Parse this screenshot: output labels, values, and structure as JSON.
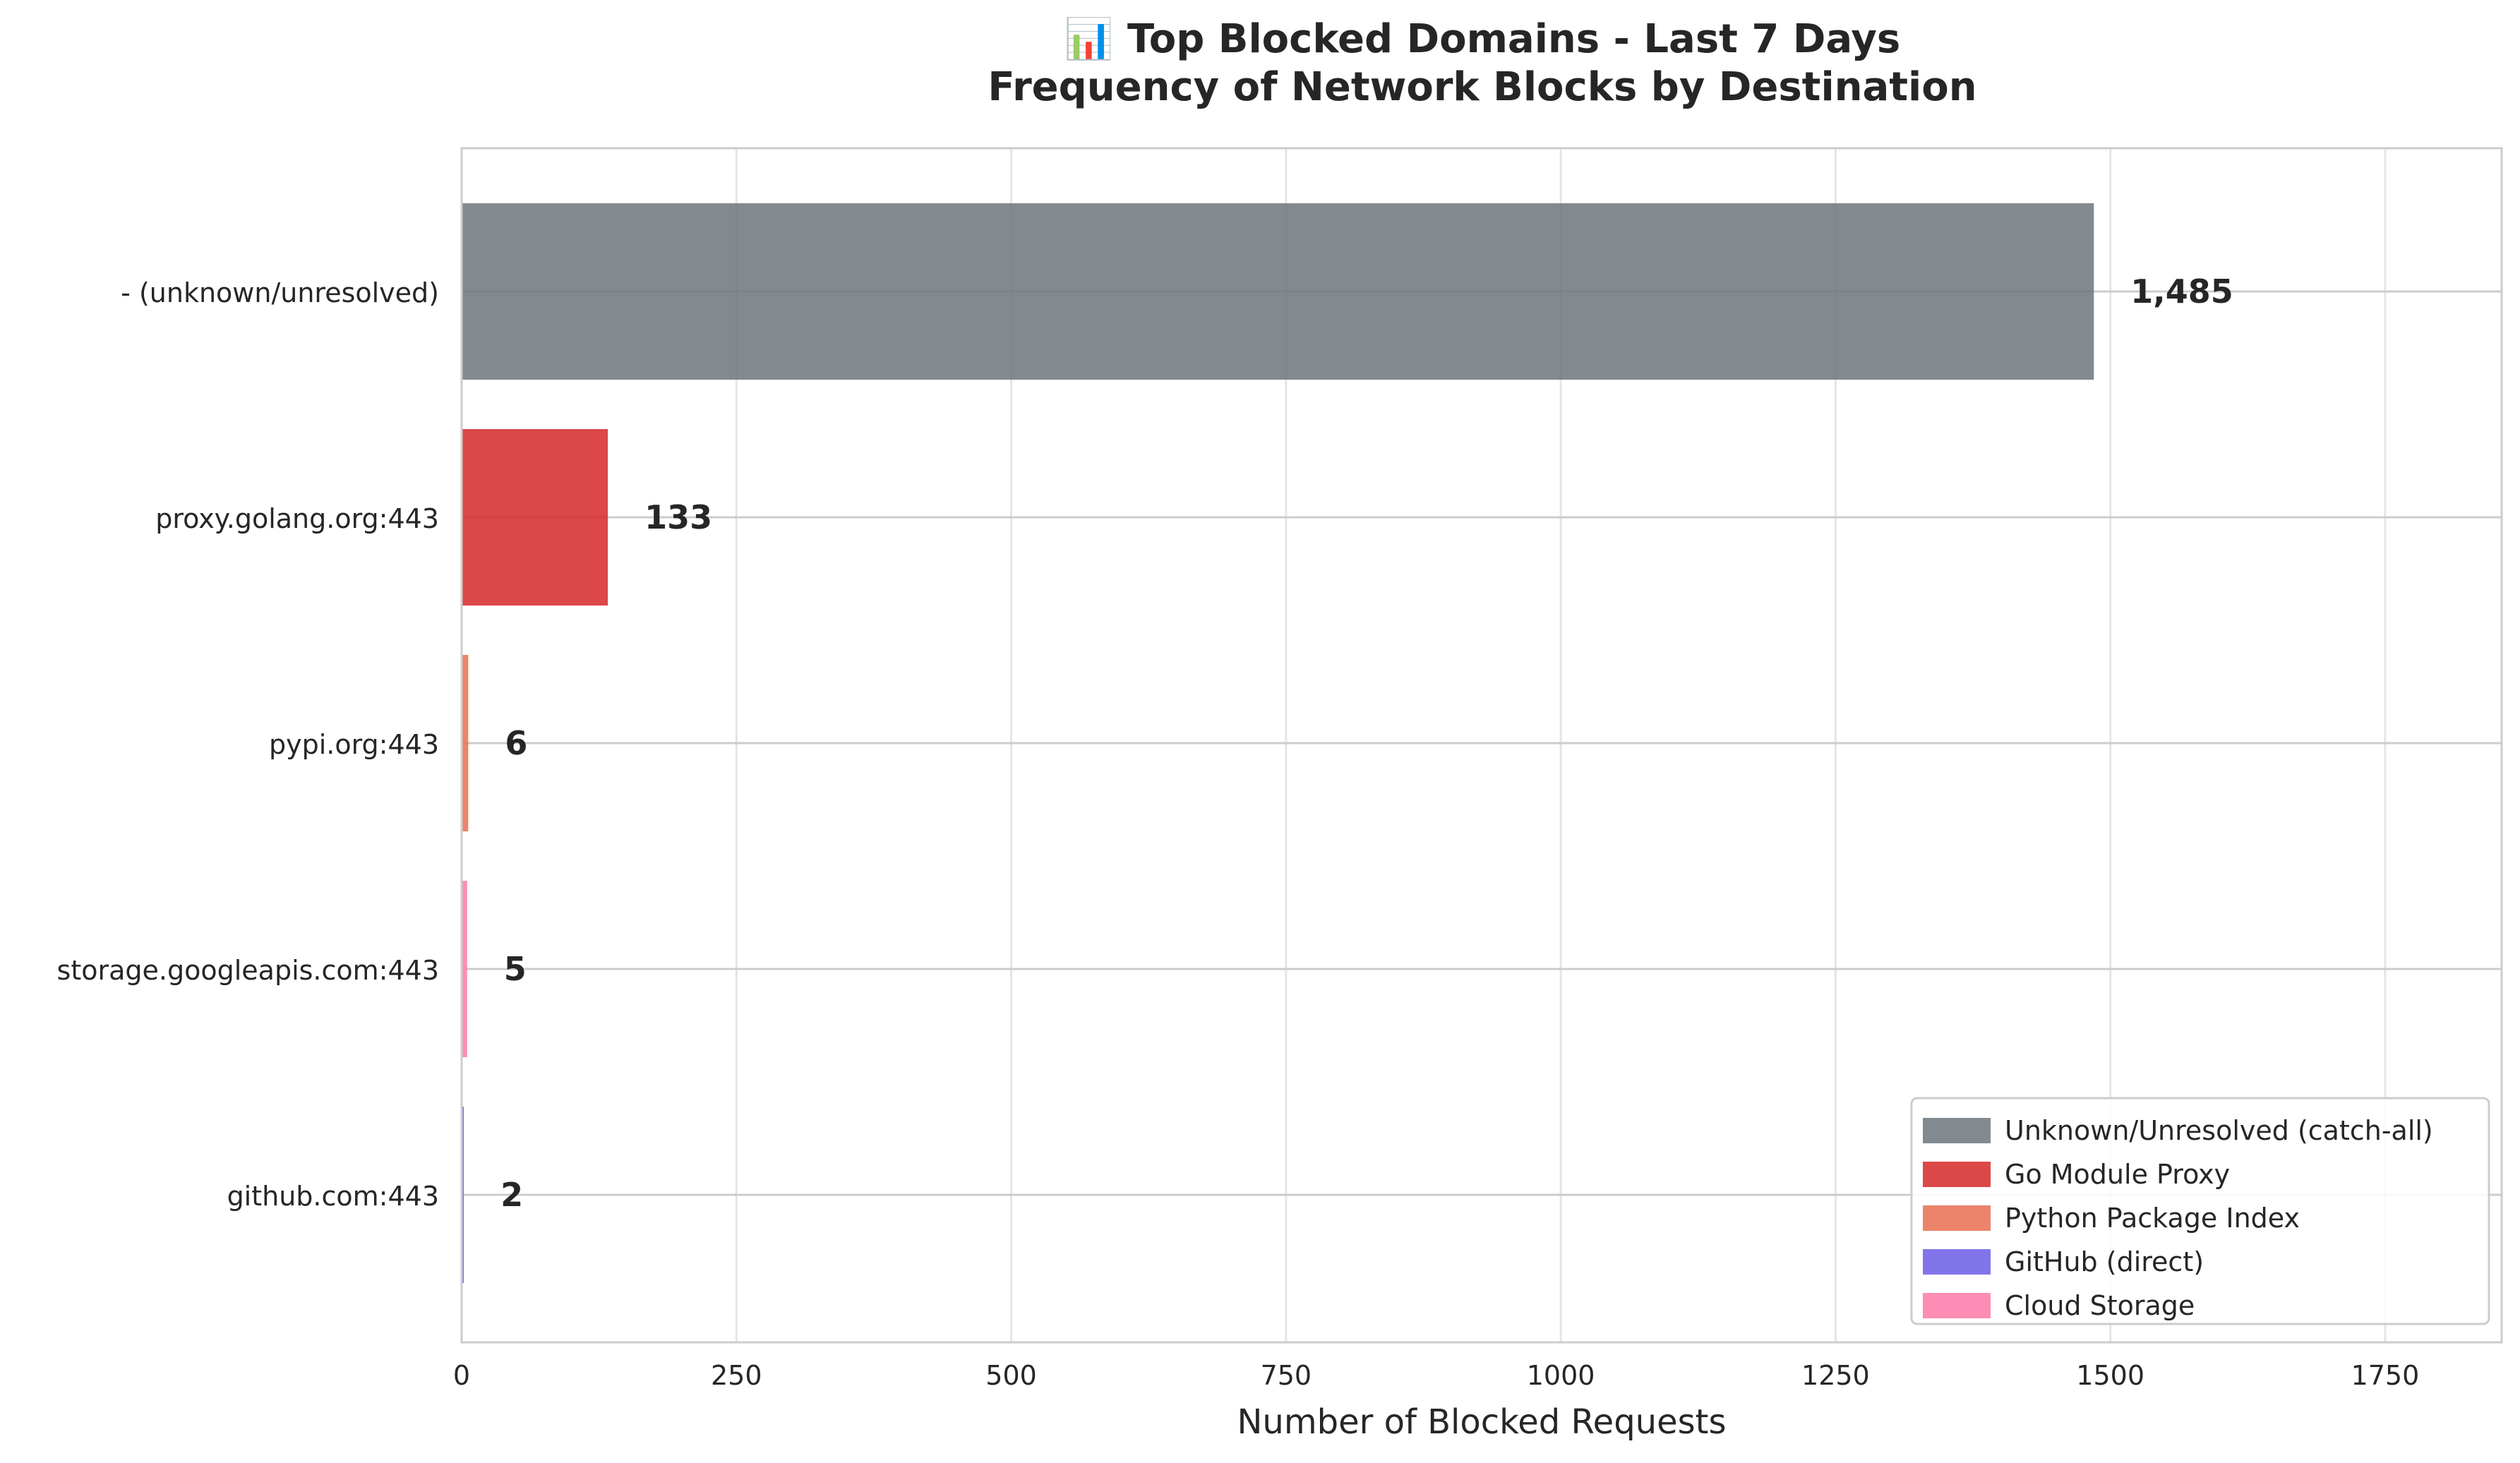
{
  "chart_data": {
    "type": "bar",
    "orientation": "horizontal",
    "title": "📊 Top Blocked Domains - Last 7 Days",
    "subtitle": "Frequency of Network Blocks by Destination",
    "xlabel": "Number of Blocked Requests",
    "ylabel": "",
    "xlim": [
      0,
      1856
    ],
    "xticks": [
      0,
      250,
      500,
      750,
      1000,
      1250,
      1500,
      1750
    ],
    "grid": true,
    "legend_position": "bottom-right",
    "categories": [
      "- (unknown/unresolved)",
      "proxy.golang.org:443",
      "pypi.org:443",
      "storage.googleapis.com:443",
      "github.com:443"
    ],
    "values": [
      1485,
      133,
      6,
      5,
      2
    ],
    "value_labels": [
      "1,485",
      "133",
      "6",
      "5",
      "2"
    ],
    "bar_colors": [
      "#6c757d",
      "#d62728",
      "#e76f51",
      "#6c5ce7",
      "#fd79a8"
    ],
    "bar_groups": [
      0,
      1,
      2,
      4,
      3
    ],
    "legend": [
      {
        "label": "Unknown/Unresolved (catch-all)",
        "color": "#6c757d"
      },
      {
        "label": "Go Module Proxy",
        "color": "#d62728"
      },
      {
        "label": "Python Package Index",
        "color": "#e76f51"
      },
      {
        "label": "GitHub (direct)",
        "color": "#6c5ce7"
      },
      {
        "label": "Cloud Storage",
        "color": "#fd79a8"
      }
    ]
  }
}
